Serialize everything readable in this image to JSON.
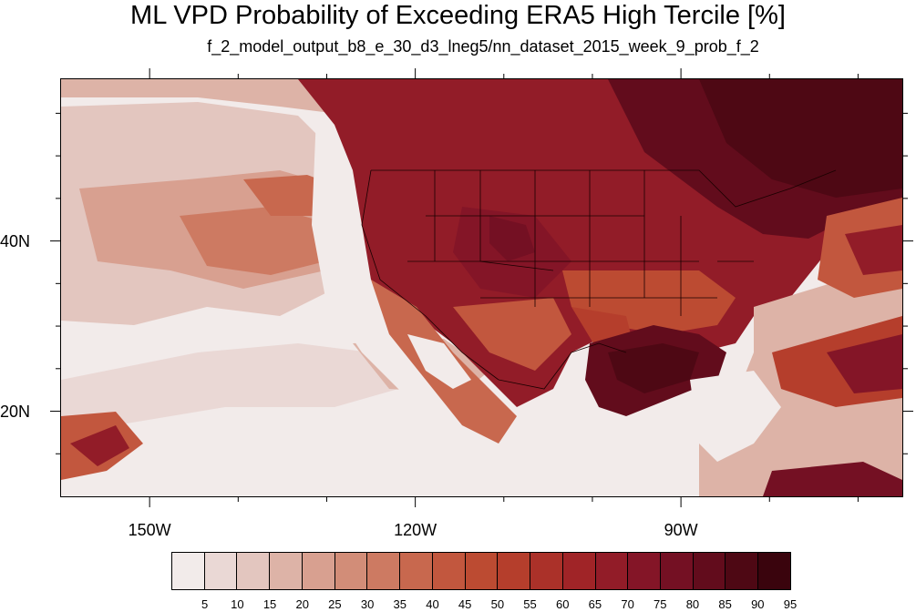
{
  "title": "ML VPD Probability of Exceeding ERA5 High Tercile [%]",
  "subtitle": "f_2_model_output_b8_e_30_d3_lneg5/nn_dataset_2015_week_9_prob_f_2",
  "map": {
    "lon_range": [
      -160,
      -65
    ],
    "lat_range": [
      10,
      59
    ],
    "lat_ticks": [
      {
        "value": 40,
        "label": "40N"
      },
      {
        "value": 20,
        "label": "20N"
      }
    ],
    "lon_ticks": [
      {
        "value": -150,
        "label": "150W"
      },
      {
        "value": -120,
        "label": "120W"
      },
      {
        "value": -90,
        "label": "90W"
      }
    ],
    "ocean_color": "#f2ebea",
    "land_color": "#8e1a26"
  },
  "colorbar": {
    "colors": [
      "#f2ebea",
      "#ead8d5",
      "#e3c6bf",
      "#ddb3a7",
      "#d8a090",
      "#d28d78",
      "#cd7a62",
      "#c8684e",
      "#c2573e",
      "#bc4b32",
      "#b53e2c",
      "#ab3129",
      "#a02427",
      "#921c28",
      "#841527",
      "#741023",
      "#620c1c",
      "#4e0814",
      "#3a040d"
    ],
    "labels": [
      "5",
      "10",
      "15",
      "20",
      "25",
      "30",
      "35",
      "40",
      "45",
      "50",
      "55",
      "60",
      "65",
      "70",
      "75",
      "80",
      "85",
      "90",
      "95"
    ]
  }
}
